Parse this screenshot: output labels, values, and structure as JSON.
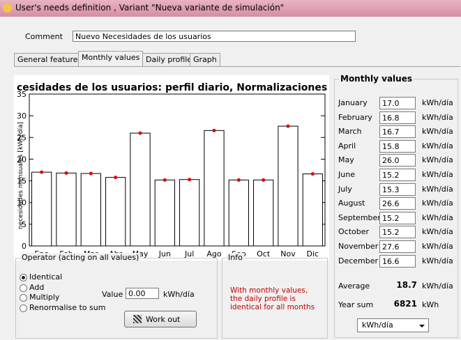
{
  "window": {
    "title": "User's needs definition , Variant  \"Nueva variante de simulación\""
  },
  "comment": {
    "label": "Comment",
    "value": "Nuevo Necesidades de los usuarios"
  },
  "tabs": [
    "General features",
    "Monthly values",
    "Daily profile",
    "Graph"
  ],
  "chart_data": {
    "type": "bar",
    "title": "cesidades de los usuarios: perfil diario, Normalizaciones mensua",
    "y_label": "necesidades mensuales [kWh/día]",
    "categories": [
      "Ene",
      "Feb",
      "Mar",
      "Abr",
      "May",
      "Jun",
      "Jul",
      "Ago",
      "Sep",
      "Oct",
      "Nov",
      "Dic"
    ],
    "values": [
      17.0,
      16.8,
      16.7,
      15.8,
      26.0,
      15.2,
      15.3,
      26.6,
      15.2,
      15.2,
      27.6,
      16.6
    ],
    "color": "#ffffff",
    "point_color": "#e00000",
    "ylim": [
      0,
      35
    ],
    "yticks": [
      0,
      5,
      10,
      15,
      20,
      25,
      30,
      35
    ]
  },
  "monthly": {
    "title": "Monthly values",
    "rows": [
      {
        "month": "January",
        "value": "17.0",
        "unit": "kWh/día"
      },
      {
        "month": "February",
        "value": "16.8",
        "unit": "kWh/día"
      },
      {
        "month": "March",
        "value": "16.7",
        "unit": "kWh/día"
      },
      {
        "month": "April",
        "value": "15.8",
        "unit": "kWh/día"
      },
      {
        "month": "May",
        "value": "26.0",
        "unit": "kWh/día"
      },
      {
        "month": "June",
        "value": "15.2",
        "unit": "kWh/día"
      },
      {
        "month": "July",
        "value": "15.3",
        "unit": "kWh/día"
      },
      {
        "month": "August",
        "value": "26.6",
        "unit": "kWh/día"
      },
      {
        "month": "September",
        "value": "15.2",
        "unit": "kWh/día"
      },
      {
        "month": "October",
        "value": "15.2",
        "unit": "kWh/día"
      },
      {
        "month": "November",
        "value": "27.6",
        "unit": "kWh/día"
      },
      {
        "month": "December",
        "value": "16.6",
        "unit": "kWh/día"
      }
    ],
    "average": {
      "label": "Average",
      "value": "18.7",
      "unit": "kWh/día"
    },
    "year_sum": {
      "label": "Year sum",
      "value": "6821",
      "unit": "kWh"
    },
    "unit_select": "kWh/día"
  },
  "operator": {
    "title": "Operator  (acting on all values)",
    "options": [
      "Identical",
      "Add",
      "Multiply",
      "Renormalise to sum"
    ],
    "value_label": "Value",
    "value": "0.00",
    "unit": "kWh/día",
    "button": "Work out"
  },
  "info": {
    "title": "Info",
    "text": "With monthly values, the daily profile is identical for all months"
  }
}
